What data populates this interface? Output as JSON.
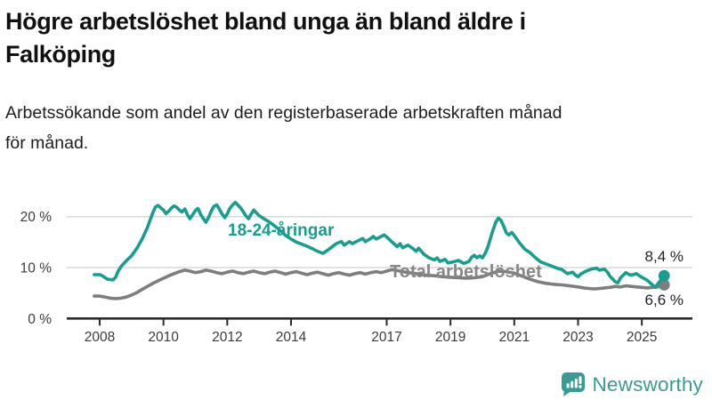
{
  "header": {
    "title_line1": "Högre arbetslöshet bland unga än bland äldre i",
    "title_line2": "Falköping",
    "subtitle_line1": "Arbetssökande som andel av den registerbaserade arbetskraften månad",
    "subtitle_line2": "för månad."
  },
  "chart_data": {
    "type": "line",
    "unit": "%",
    "grid": "horizontal",
    "legend_position": "inline-labels",
    "x_axis": {
      "ticks": [
        {
          "year": 2008,
          "label": "2008"
        },
        {
          "year": 2010,
          "label": "2010"
        },
        {
          "year": 2012,
          "label": "2012"
        },
        {
          "year": 2014,
          "label": "2014"
        },
        {
          "year": 2017,
          "label": "2017"
        },
        {
          "year": 2019,
          "label": "2019"
        },
        {
          "year": 2021,
          "label": "2021"
        },
        {
          "year": 2023,
          "label": "2023"
        },
        {
          "year": 2025,
          "label": "2025"
        }
      ],
      "range": [
        2007.8,
        2026.3
      ]
    },
    "y_axis": {
      "ticks": [
        {
          "value": 20,
          "label": "20 %"
        },
        {
          "value": 10,
          "label": "10 %"
        },
        {
          "value": 0,
          "label": "0 %"
        }
      ],
      "range": [
        0,
        24
      ]
    },
    "series": [
      {
        "name": "18-24-åringar",
        "color": "#179e8e",
        "end_label": "8,4 %",
        "end_value": 8.4,
        "points": [
          [
            2007.83,
            8.6
          ],
          [
            2008.0,
            8.6
          ],
          [
            2008.08,
            8.4
          ],
          [
            2008.25,
            7.7
          ],
          [
            2008.42,
            7.6
          ],
          [
            2008.5,
            8.1
          ],
          [
            2008.58,
            9.3
          ],
          [
            2008.67,
            10.2
          ],
          [
            2008.83,
            11.3
          ],
          [
            2009.0,
            12.3
          ],
          [
            2009.17,
            13.8
          ],
          [
            2009.33,
            15.6
          ],
          [
            2009.5,
            17.9
          ],
          [
            2009.58,
            19.3
          ],
          [
            2009.67,
            20.8
          ],
          [
            2009.75,
            21.9
          ],
          [
            2009.83,
            22.2
          ],
          [
            2009.92,
            21.7
          ],
          [
            2010.0,
            21.3
          ],
          [
            2010.08,
            20.6
          ],
          [
            2010.17,
            21.1
          ],
          [
            2010.25,
            21.7
          ],
          [
            2010.33,
            22.1
          ],
          [
            2010.42,
            21.8
          ],
          [
            2010.5,
            21.3
          ],
          [
            2010.58,
            20.9
          ],
          [
            2010.67,
            21.5
          ],
          [
            2010.75,
            20.4
          ],
          [
            2010.83,
            19.6
          ],
          [
            2010.92,
            20.4
          ],
          [
            2011.0,
            21.2
          ],
          [
            2011.08,
            21.6
          ],
          [
            2011.17,
            20.4
          ],
          [
            2011.25,
            19.6
          ],
          [
            2011.33,
            18.9
          ],
          [
            2011.42,
            19.9
          ],
          [
            2011.5,
            21.1
          ],
          [
            2011.58,
            22.0
          ],
          [
            2011.67,
            22.3
          ],
          [
            2011.75,
            21.5
          ],
          [
            2011.83,
            20.6
          ],
          [
            2011.92,
            19.8
          ],
          [
            2012.0,
            20.5
          ],
          [
            2012.08,
            21.6
          ],
          [
            2012.17,
            22.3
          ],
          [
            2012.25,
            22.8
          ],
          [
            2012.33,
            22.3
          ],
          [
            2012.42,
            21.7
          ],
          [
            2012.5,
            21.0
          ],
          [
            2012.58,
            20.2
          ],
          [
            2012.67,
            19.6
          ],
          [
            2012.75,
            20.5
          ],
          [
            2012.83,
            21.3
          ],
          [
            2012.92,
            20.7
          ],
          [
            2013.0,
            20.2
          ],
          [
            2013.17,
            19.5
          ],
          [
            2013.33,
            18.9
          ],
          [
            2013.5,
            18.1
          ],
          [
            2013.67,
            17.2
          ],
          [
            2013.83,
            16.3
          ],
          [
            2014.0,
            15.6
          ],
          [
            2014.17,
            15.0
          ],
          [
            2014.33,
            14.6
          ],
          [
            2014.5,
            14.2
          ],
          [
            2014.67,
            13.7
          ],
          [
            2014.83,
            13.2
          ],
          [
            2015.0,
            12.8
          ],
          [
            2015.08,
            13.1
          ],
          [
            2015.25,
            13.9
          ],
          [
            2015.42,
            14.7
          ],
          [
            2015.58,
            15.1
          ],
          [
            2015.67,
            14.4
          ],
          [
            2015.83,
            15.1
          ],
          [
            2015.92,
            14.7
          ],
          [
            2016.08,
            15.2
          ],
          [
            2016.25,
            15.7
          ],
          [
            2016.33,
            15.1
          ],
          [
            2016.5,
            15.7
          ],
          [
            2016.58,
            16.1
          ],
          [
            2016.67,
            15.6
          ],
          [
            2016.83,
            16.1
          ],
          [
            2016.92,
            16.4
          ],
          [
            2017.0,
            16.0
          ],
          [
            2017.17,
            15.0
          ],
          [
            2017.33,
            14.1
          ],
          [
            2017.42,
            14.7
          ],
          [
            2017.5,
            13.9
          ],
          [
            2017.67,
            14.4
          ],
          [
            2017.83,
            13.7
          ],
          [
            2017.92,
            13.2
          ],
          [
            2018.0,
            13.8
          ],
          [
            2018.17,
            12.6
          ],
          [
            2018.33,
            11.9
          ],
          [
            2018.5,
            11.5
          ],
          [
            2018.58,
            11.9
          ],
          [
            2018.67,
            11.2
          ],
          [
            2018.83,
            11.6
          ],
          [
            2018.92,
            10.9
          ],
          [
            2019.08,
            11.1
          ],
          [
            2019.25,
            11.4
          ],
          [
            2019.42,
            10.8
          ],
          [
            2019.58,
            11.2
          ],
          [
            2019.67,
            12.1
          ],
          [
            2019.75,
            12.4
          ],
          [
            2019.83,
            11.9
          ],
          [
            2019.92,
            12.3
          ],
          [
            2020.0,
            11.9
          ],
          [
            2020.08,
            12.7
          ],
          [
            2020.17,
            14.0
          ],
          [
            2020.25,
            15.7
          ],
          [
            2020.33,
            17.3
          ],
          [
            2020.42,
            18.9
          ],
          [
            2020.5,
            19.7
          ],
          [
            2020.58,
            19.3
          ],
          [
            2020.67,
            18.1
          ],
          [
            2020.75,
            16.8
          ],
          [
            2020.83,
            16.4
          ],
          [
            2020.92,
            16.9
          ],
          [
            2021.0,
            16.3
          ],
          [
            2021.08,
            15.6
          ],
          [
            2021.17,
            14.8
          ],
          [
            2021.33,
            13.6
          ],
          [
            2021.5,
            12.9
          ],
          [
            2021.67,
            11.9
          ],
          [
            2021.83,
            11.1
          ],
          [
            2022.0,
            10.7
          ],
          [
            2022.17,
            10.3
          ],
          [
            2022.33,
            9.9
          ],
          [
            2022.5,
            9.6
          ],
          [
            2022.58,
            9.2
          ],
          [
            2022.67,
            8.8
          ],
          [
            2022.83,
            9.1
          ],
          [
            2022.92,
            8.5
          ],
          [
            2023.0,
            8.2
          ],
          [
            2023.08,
            8.7
          ],
          [
            2023.25,
            9.3
          ],
          [
            2023.42,
            9.7
          ],
          [
            2023.58,
            9.9
          ],
          [
            2023.67,
            9.5
          ],
          [
            2023.83,
            9.7
          ],
          [
            2023.92,
            9.1
          ],
          [
            2024.0,
            8.3
          ],
          [
            2024.17,
            7.2
          ],
          [
            2024.25,
            7.0
          ],
          [
            2024.33,
            8.0
          ],
          [
            2024.5,
            9.0
          ],
          [
            2024.58,
            8.7
          ],
          [
            2024.67,
            8.5
          ],
          [
            2024.83,
            8.8
          ],
          [
            2024.92,
            8.4
          ],
          [
            2025.0,
            8.1
          ],
          [
            2025.17,
            7.5
          ],
          [
            2025.33,
            6.6
          ],
          [
            2025.42,
            6.1
          ],
          [
            2025.5,
            6.8
          ],
          [
            2025.58,
            7.4
          ],
          [
            2025.7,
            8.4
          ]
        ]
      },
      {
        "name": "Total arbetslöshet",
        "color": "#7e7e7e",
        "label_color": "#878787",
        "end_label": "6,6 %",
        "end_value": 6.6,
        "points": [
          [
            2007.83,
            4.4
          ],
          [
            2008.0,
            4.4
          ],
          [
            2008.17,
            4.2
          ],
          [
            2008.33,
            4.0
          ],
          [
            2008.5,
            3.9
          ],
          [
            2008.67,
            4.0
          ],
          [
            2008.83,
            4.2
          ],
          [
            2009.0,
            4.6
          ],
          [
            2009.17,
            5.1
          ],
          [
            2009.33,
            5.7
          ],
          [
            2009.5,
            6.3
          ],
          [
            2009.67,
            6.9
          ],
          [
            2009.83,
            7.4
          ],
          [
            2010.0,
            7.9
          ],
          [
            2010.17,
            8.4
          ],
          [
            2010.33,
            8.8
          ],
          [
            2010.5,
            9.2
          ],
          [
            2010.67,
            9.5
          ],
          [
            2010.83,
            9.3
          ],
          [
            2011.0,
            9.0
          ],
          [
            2011.17,
            9.2
          ],
          [
            2011.33,
            9.5
          ],
          [
            2011.5,
            9.3
          ],
          [
            2011.67,
            9.0
          ],
          [
            2011.83,
            8.8
          ],
          [
            2012.0,
            9.1
          ],
          [
            2012.17,
            9.3
          ],
          [
            2012.33,
            9.0
          ],
          [
            2012.5,
            8.8
          ],
          [
            2012.67,
            9.1
          ],
          [
            2012.83,
            9.3
          ],
          [
            2013.0,
            9.0
          ],
          [
            2013.17,
            8.8
          ],
          [
            2013.33,
            9.1
          ],
          [
            2013.5,
            9.3
          ],
          [
            2013.67,
            9.0
          ],
          [
            2013.83,
            8.7
          ],
          [
            2014.0,
            9.0
          ],
          [
            2014.17,
            9.2
          ],
          [
            2014.33,
            8.9
          ],
          [
            2014.5,
            8.6
          ],
          [
            2014.67,
            8.9
          ],
          [
            2014.83,
            9.1
          ],
          [
            2015.0,
            8.8
          ],
          [
            2015.17,
            8.5
          ],
          [
            2015.33,
            8.8
          ],
          [
            2015.5,
            9.0
          ],
          [
            2015.67,
            8.7
          ],
          [
            2015.83,
            8.5
          ],
          [
            2016.0,
            8.8
          ],
          [
            2016.17,
            9.0
          ],
          [
            2016.33,
            8.7
          ],
          [
            2016.5,
            9.0
          ],
          [
            2016.67,
            9.2
          ],
          [
            2016.83,
            9.0
          ],
          [
            2017.0,
            9.3
          ],
          [
            2017.17,
            9.6
          ],
          [
            2017.33,
            9.4
          ],
          [
            2017.5,
            9.2
          ],
          [
            2017.67,
            9.0
          ],
          [
            2017.83,
            8.9
          ],
          [
            2018.0,
            8.7
          ],
          [
            2018.25,
            8.5
          ],
          [
            2018.5,
            8.4
          ],
          [
            2018.75,
            8.2
          ],
          [
            2019.0,
            8.1
          ],
          [
            2019.25,
            8.0
          ],
          [
            2019.5,
            7.9
          ],
          [
            2019.75,
            8.0
          ],
          [
            2020.0,
            8.2
          ],
          [
            2020.25,
            8.8
          ],
          [
            2020.5,
            9.3
          ],
          [
            2020.75,
            9.2
          ],
          [
            2021.0,
            8.9
          ],
          [
            2021.25,
            8.3
          ],
          [
            2021.5,
            7.7
          ],
          [
            2021.75,
            7.2
          ],
          [
            2022.0,
            6.9
          ],
          [
            2022.25,
            6.7
          ],
          [
            2022.5,
            6.6
          ],
          [
            2022.75,
            6.4
          ],
          [
            2023.0,
            6.2
          ],
          [
            2023.17,
            6.0
          ],
          [
            2023.33,
            5.9
          ],
          [
            2023.5,
            5.8
          ],
          [
            2023.67,
            5.9
          ],
          [
            2023.83,
            6.0
          ],
          [
            2024.0,
            6.1
          ],
          [
            2024.17,
            6.3
          ],
          [
            2024.33,
            6.2
          ],
          [
            2024.5,
            6.4
          ],
          [
            2024.67,
            6.3
          ],
          [
            2024.83,
            6.2
          ],
          [
            2025.0,
            6.1
          ],
          [
            2025.17,
            6.0
          ],
          [
            2025.33,
            6.1
          ],
          [
            2025.5,
            6.2
          ],
          [
            2025.58,
            6.3
          ],
          [
            2025.7,
            6.6
          ]
        ]
      }
    ],
    "style": {
      "gridline_color": "#d9d9d9",
      "axis_color": "#2b2b2b",
      "tick_label_color": "#3b3b3b",
      "end_label_color": "#222222"
    }
  },
  "footer": {
    "logo_text": "Newsworthy",
    "logo_color": "#3a9a94"
  }
}
